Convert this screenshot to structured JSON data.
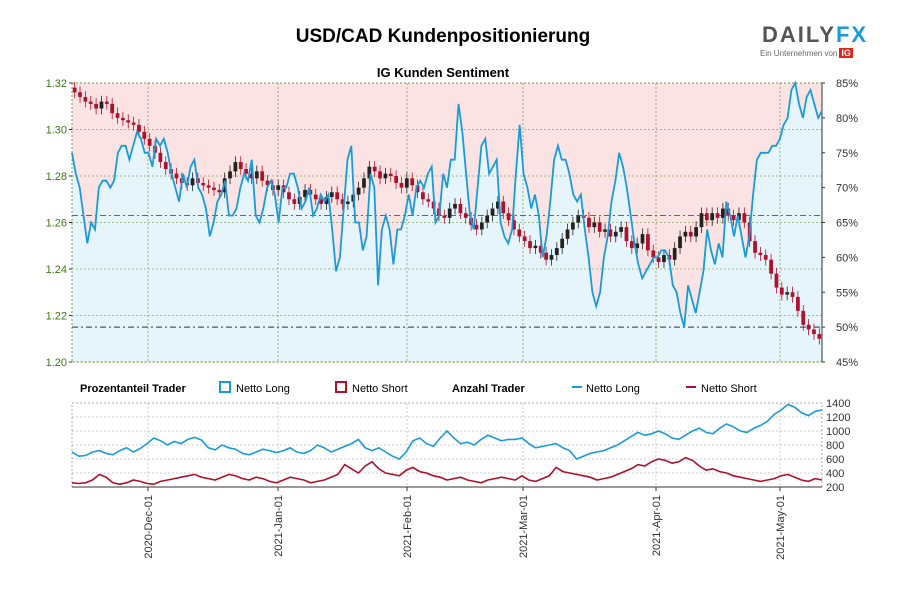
{
  "title": "USD/CAD Kundenpositionierung",
  "logo": {
    "brand_main": "DAILY",
    "brand_accent": "FX",
    "tagline": "Ein Unternehmen von",
    "tag_badge": "IG"
  },
  "legend": {
    "pct_title": "Prozentanteil Trader",
    "pct_long": "Netto Long",
    "pct_short": "Netto Short",
    "count_title": "Anzahl Trader",
    "count_long": "Netto Long",
    "count_short": "Netto Short"
  },
  "colors": {
    "long": "#1a9bd8",
    "short": "#b0102a",
    "long_fill": "#e6f4fb",
    "short_fill": "#fbe3e3",
    "up": "#222222",
    "down": "#b0102a",
    "grid": "#5b8c2a"
  },
  "chart_data": [
    {
      "type": "candlestick",
      "title": "IG Kunden Sentiment",
      "y_left_ticks": [
        "1.32",
        "1.30",
        "1.28",
        "1.26",
        "1.24",
        "1.22",
        "1.20"
      ],
      "y_left_range": [
        1.2,
        1.32
      ],
      "y_right_ticks": [
        "85%",
        "80%",
        "75%",
        "70%",
        "65%",
        "60%",
        "55%",
        "50%",
        "45%"
      ],
      "y_right_range": [
        45,
        85
      ],
      "reference_lines": {
        "price": 1.263,
        "pct_long": 50
      },
      "close": [
        1.316,
        1.314,
        1.312,
        1.311,
        1.309,
        1.312,
        1.311,
        1.307,
        1.305,
        1.304,
        1.303,
        1.302,
        1.299,
        1.296,
        1.293,
        1.29,
        1.286,
        1.283,
        1.281,
        1.279,
        1.277,
        1.276,
        1.279,
        1.277,
        1.276,
        1.275,
        1.274,
        1.273,
        1.279,
        1.282,
        1.286,
        1.283,
        1.281,
        1.279,
        1.282,
        1.278,
        1.276,
        1.274,
        1.276,
        1.273,
        1.27,
        1.268,
        1.271,
        1.274,
        1.272,
        1.27,
        1.268,
        1.271,
        1.273,
        1.27,
        1.268,
        1.269,
        1.272,
        1.275,
        1.279,
        1.284,
        1.282,
        1.279,
        1.281,
        1.28,
        1.277,
        1.275,
        1.279,
        1.276,
        1.273,
        1.27,
        1.269,
        1.266,
        1.263,
        1.262,
        1.266,
        1.268,
        1.264,
        1.262,
        1.259,
        1.257,
        1.26,
        1.263,
        1.266,
        1.269,
        1.264,
        1.261,
        1.257,
        1.254,
        1.252,
        1.249,
        1.25,
        1.247,
        1.244,
        1.246,
        1.249,
        1.253,
        1.257,
        1.26,
        1.263,
        1.262,
        1.258,
        1.26,
        1.256,
        1.257,
        1.254,
        1.256,
        1.258,
        1.252,
        1.249,
        1.251,
        1.255,
        1.248,
        1.245,
        1.243,
        1.246,
        1.244,
        1.249,
        1.254,
        1.256,
        1.254,
        1.258,
        1.264,
        1.261,
        1.264,
        1.262,
        1.266,
        1.263,
        1.261,
        1.264,
        1.26,
        1.252,
        1.247,
        1.246,
        1.244,
        1.238,
        1.232,
        1.229,
        1.23,
        1.228,
        1.222,
        1.216,
        1.214,
        1.212,
        1.21
      ],
      "pct_long": [
        75,
        72,
        70,
        66,
        62,
        65,
        64,
        70,
        71,
        71,
        70,
        71,
        75,
        76,
        76,
        74,
        76,
        78,
        77,
        75,
        75,
        73,
        77,
        76,
        77,
        75,
        72,
        70,
        68,
        72,
        70,
        73,
        74,
        70,
        69,
        67,
        63,
        65,
        68,
        69,
        71,
        66,
        66,
        67,
        70,
        72,
        71,
        74,
        66,
        65,
        67,
        70,
        71,
        69,
        65,
        70,
        70,
        72,
        72,
        70,
        67,
        68,
        70,
        66,
        67,
        69,
        68,
        69,
        64,
        58,
        60,
        67,
        74,
        76,
        65,
        65,
        61,
        63,
        72,
        70,
        56,
        64,
        66,
        64,
        59,
        64,
        64,
        66,
        69,
        66,
        70,
        71,
        70,
        72,
        73,
        65,
        66,
        72,
        70,
        74,
        74,
        82,
        78,
        72,
        66,
        64,
        70,
        76,
        77,
        72,
        73,
        74,
        65,
        63,
        62,
        64,
        72,
        79,
        72,
        70,
        67,
        69,
        66,
        60,
        63,
        68,
        74,
        76,
        74,
        74,
        72,
        69,
        68,
        69,
        64,
        60,
        55,
        53,
        55,
        60,
        63,
        68,
        71,
        75,
        73,
        70,
        66,
        62,
        59,
        57,
        58,
        59,
        60,
        60,
        61,
        61,
        60,
        56,
        55,
        52,
        50,
        56,
        54,
        52,
        55,
        58,
        64,
        61,
        59,
        62,
        60,
        68,
        66,
        63,
        66,
        63,
        60,
        63,
        69,
        74,
        75,
        75,
        75,
        76,
        76,
        77,
        79,
        80,
        84,
        85,
        82,
        80,
        83,
        84,
        82,
        80,
        81
      ]
    },
    {
      "type": "line",
      "title": "",
      "x_ticks": [
        "2020-Dec-01",
        "2021-Jan-01",
        "2021-Feb-01",
        "2021-Mar-01",
        "2021-Apr-01",
        "2021-May-01"
      ],
      "y_ticks": [
        "1400",
        "1200",
        "1000",
        "800",
        "600",
        "400",
        "200"
      ],
      "y_range": [
        200,
        1400
      ],
      "series": [
        {
          "name": "Netto Long",
          "values": [
            700,
            640,
            650,
            700,
            720,
            680,
            660,
            720,
            760,
            700,
            750,
            820,
            900,
            860,
            800,
            850,
            820,
            880,
            910,
            870,
            760,
            730,
            800,
            760,
            740,
            680,
            660,
            700,
            740,
            720,
            690,
            720,
            760,
            700,
            680,
            720,
            800,
            760,
            700,
            740,
            780,
            820,
            880,
            760,
            720,
            760,
            700,
            640,
            600,
            700,
            860,
            900,
            820,
            780,
            900,
            1000,
            900,
            820,
            840,
            800,
            880,
            940,
            900,
            860,
            880,
            880,
            900,
            820,
            760,
            780,
            800,
            820,
            760,
            720,
            600,
            640,
            680,
            700,
            720,
            760,
            800,
            860,
            920,
            980,
            940,
            960,
            1000,
            960,
            900,
            880,
            940,
            1000,
            1040,
            980,
            960,
            1040,
            1100,
            1060,
            1000,
            980,
            1040,
            1080,
            1140,
            1240,
            1300,
            1380,
            1340,
            1260,
            1220,
            1280,
            1300
          ]
        },
        {
          "name": "Netto Short",
          "values": [
            260,
            250,
            260,
            300,
            380,
            340,
            260,
            240,
            260,
            300,
            280,
            250,
            240,
            280,
            300,
            320,
            340,
            360,
            380,
            340,
            320,
            300,
            340,
            380,
            360,
            320,
            300,
            340,
            320,
            280,
            260,
            300,
            340,
            320,
            300,
            260,
            280,
            300,
            340,
            380,
            520,
            460,
            400,
            500,
            560,
            460,
            400,
            380,
            360,
            440,
            480,
            420,
            400,
            360,
            340,
            300,
            320,
            340,
            300,
            280,
            260,
            300,
            320,
            340,
            320,
            300,
            360,
            300,
            280,
            320,
            360,
            480,
            420,
            400,
            380,
            360,
            340,
            300,
            320,
            340,
            380,
            420,
            460,
            520,
            500,
            560,
            600,
            580,
            540,
            560,
            620,
            580,
            500,
            440,
            460,
            420,
            400,
            360,
            340,
            320,
            300,
            280,
            300,
            320,
            360,
            380,
            340,
            300,
            280,
            320,
            300
          ]
        }
      ]
    }
  ]
}
